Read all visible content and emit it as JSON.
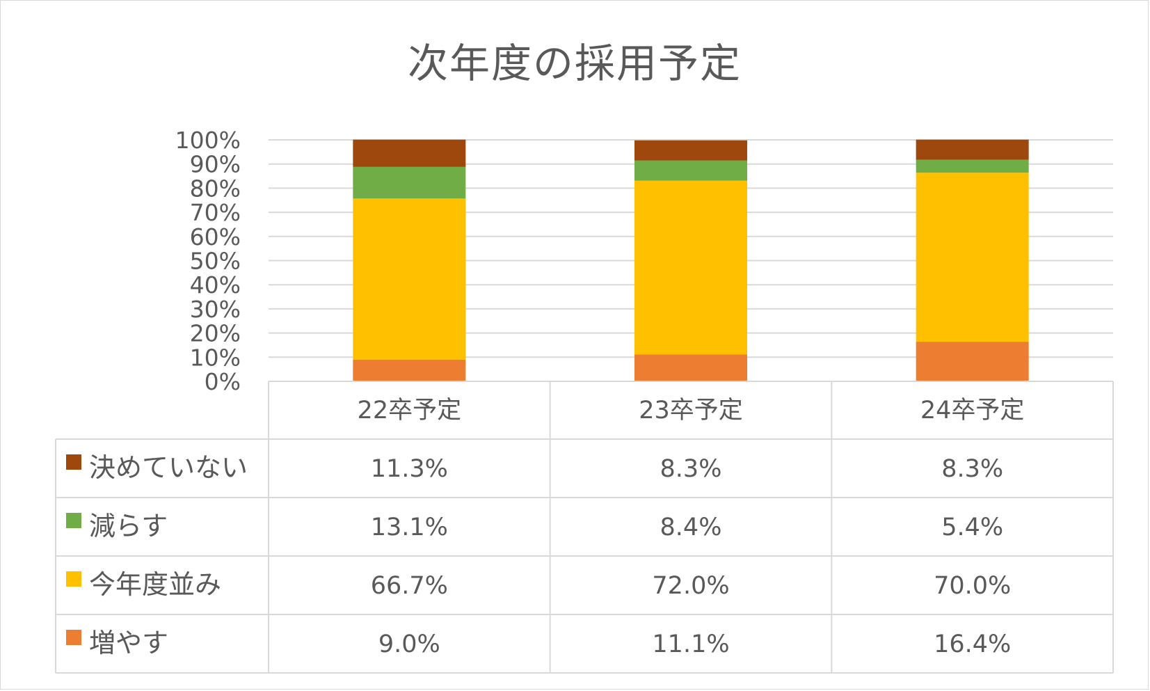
{
  "chart_data": {
    "type": "bar",
    "stacked": true,
    "title": "次年度の採用予定",
    "categories": [
      "22卒予定",
      "23卒予定",
      "24卒予定"
    ],
    "y_ticks": [
      "0%",
      "10%",
      "20%",
      "30%",
      "40%",
      "50%",
      "60%",
      "70%",
      "80%",
      "90%",
      "100%"
    ],
    "ylim": [
      0,
      100
    ],
    "grid": true,
    "legend": "data-table-left",
    "series": [
      {
        "name": "増やす",
        "color": "#ED7D31",
        "values": [
          9.0,
          11.1,
          16.4
        ],
        "labels": [
          "9.0%",
          "11.1%",
          "16.4%"
        ]
      },
      {
        "name": "今年度並み",
        "color": "#FFC000",
        "values": [
          66.7,
          72.0,
          70.0
        ],
        "labels": [
          "66.7%",
          "72.0%",
          "70.0%"
        ]
      },
      {
        "name": "減らす",
        "color": "#70AD47",
        "values": [
          13.1,
          8.4,
          5.4
        ],
        "labels": [
          "13.1%",
          "8.4%",
          "5.4%"
        ]
      },
      {
        "name": "決めていない",
        "color": "#9E480E",
        "values": [
          11.3,
          8.3,
          8.3
        ],
        "labels": [
          "11.3%",
          "8.3%",
          "8.3%"
        ]
      }
    ],
    "table_row_order": [
      "決めていない",
      "減らす",
      "今年度並み",
      "増やす"
    ]
  }
}
